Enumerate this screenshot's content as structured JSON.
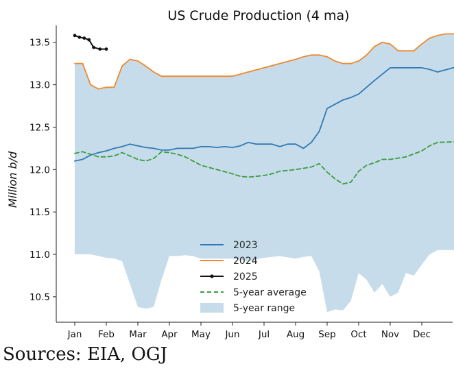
{
  "source_text": "Sources: EIA, OGJ",
  "chart_data": {
    "type": "line",
    "title": "US Crude Production (4 ma)",
    "xlabel": "",
    "ylabel": "Million b/d",
    "x_domain": [
      0,
      12.3
    ],
    "ylim": [
      10.2,
      13.7
    ],
    "x_ticks": [
      {
        "label": "Jan",
        "value": 0
      },
      {
        "label": "Feb",
        "value": 1
      },
      {
        "label": "Mar",
        "value": 2
      },
      {
        "label": "Apr",
        "value": 3
      },
      {
        "label": "May",
        "value": 4
      },
      {
        "label": "Jun",
        "value": 5
      },
      {
        "label": "Jul",
        "value": 6
      },
      {
        "label": "Aug",
        "value": 7
      },
      {
        "label": "Sep",
        "value": 8
      },
      {
        "label": "Oct",
        "value": 9
      },
      {
        "label": "Nov",
        "value": 10
      },
      {
        "label": "Dec",
        "value": 11
      }
    ],
    "y_ticks": [
      {
        "label": "10.5",
        "value": 10.5
      },
      {
        "label": "11.0",
        "value": 11.0
      },
      {
        "label": "11.5",
        "value": 11.5
      },
      {
        "label": "12.0",
        "value": 12.0
      },
      {
        "label": "12.5",
        "value": 12.5
      },
      {
        "label": "13.0",
        "value": 13.0
      },
      {
        "label": "13.5",
        "value": 13.5
      }
    ],
    "range": {
      "name": "5-year range",
      "color": "#c6dcea",
      "x": [
        0,
        0.25,
        0.5,
        0.75,
        1.0,
        1.25,
        1.5,
        1.75,
        2.0,
        2.25,
        2.5,
        2.75,
        3.0,
        3.25,
        3.5,
        3.75,
        4.0,
        4.5,
        5.0,
        5.5,
        6.0,
        6.5,
        7.0,
        7.25,
        7.5,
        7.75,
        8.0,
        8.25,
        8.5,
        8.75,
        9.0,
        9.25,
        9.5,
        9.75,
        10.0,
        10.25,
        10.5,
        10.75,
        11.0,
        11.25,
        11.5,
        11.75,
        12.3
      ],
      "upper": [
        13.25,
        13.25,
        13.0,
        12.95,
        12.97,
        12.97,
        13.22,
        13.3,
        13.28,
        13.22,
        13.15,
        13.1,
        13.1,
        13.1,
        13.1,
        13.1,
        13.1,
        13.1,
        13.1,
        13.15,
        13.2,
        13.25,
        13.3,
        13.33,
        13.35,
        13.35,
        13.33,
        13.28,
        13.25,
        13.25,
        13.28,
        13.35,
        13.45,
        13.5,
        13.48,
        13.4,
        13.4,
        13.4,
        13.48,
        13.55,
        13.58,
        13.6,
        13.6
      ],
      "lower": [
        11.0,
        11.0,
        11.0,
        10.98,
        10.96,
        10.95,
        10.92,
        10.65,
        10.38,
        10.36,
        10.38,
        10.7,
        10.98,
        10.98,
        10.99,
        10.98,
        10.95,
        10.95,
        10.95,
        10.92,
        10.96,
        10.98,
        10.95,
        10.97,
        10.98,
        10.8,
        10.32,
        10.35,
        10.34,
        10.45,
        10.78,
        10.7,
        10.55,
        10.65,
        10.5,
        10.55,
        10.78,
        10.75,
        10.88,
        11.0,
        11.05,
        11.05,
        11.05
      ]
    },
    "series": [
      {
        "name": "2023",
        "color": "#2f78b5",
        "style": "solid",
        "x": [
          0,
          0.25,
          0.5,
          0.75,
          1.0,
          1.25,
          1.5,
          1.75,
          2.0,
          2.25,
          2.5,
          2.75,
          3.0,
          3.25,
          3.5,
          3.75,
          4.0,
          4.25,
          4.5,
          4.75,
          5.0,
          5.25,
          5.5,
          5.75,
          6.0,
          6.25,
          6.5,
          6.75,
          7.0,
          7.25,
          7.5,
          7.75,
          8.0,
          8.5,
          8.75,
          9.0,
          9.5,
          10.0,
          10.5,
          11.0,
          11.25,
          11.5,
          12.3
        ],
        "y": [
          12.1,
          12.12,
          12.17,
          12.2,
          12.22,
          12.25,
          12.27,
          12.3,
          12.28,
          12.26,
          12.25,
          12.23,
          12.23,
          12.25,
          12.25,
          12.25,
          12.27,
          12.27,
          12.26,
          12.27,
          12.26,
          12.28,
          12.32,
          12.3,
          12.3,
          12.3,
          12.27,
          12.3,
          12.3,
          12.25,
          12.32,
          12.45,
          12.72,
          12.82,
          12.85,
          12.89,
          13.05,
          13.2,
          13.2,
          13.2,
          13.18,
          13.15,
          13.23
        ]
      },
      {
        "name": "2024",
        "color": "#f0872a",
        "style": "solid",
        "x": [
          0,
          0.25,
          0.5,
          0.75,
          1.0,
          1.25,
          1.5,
          1.75,
          2.0,
          2.25,
          2.5,
          2.75,
          3.0,
          3.25,
          3.5,
          3.75,
          4.0,
          4.5,
          5.0,
          5.5,
          6.0,
          6.5,
          7.0,
          7.25,
          7.5,
          7.75,
          8.0,
          8.25,
          8.5,
          8.75,
          9.0,
          9.25,
          9.5,
          9.75,
          10.0,
          10.25,
          10.5,
          10.75,
          11.0,
          11.25,
          11.5,
          11.75,
          12.3
        ],
        "y": [
          13.25,
          13.25,
          13.0,
          12.95,
          12.97,
          12.97,
          13.22,
          13.3,
          13.28,
          13.22,
          13.15,
          13.1,
          13.1,
          13.1,
          13.1,
          13.1,
          13.1,
          13.1,
          13.1,
          13.15,
          13.2,
          13.25,
          13.3,
          13.33,
          13.35,
          13.35,
          13.33,
          13.28,
          13.25,
          13.25,
          13.28,
          13.35,
          13.45,
          13.5,
          13.48,
          13.4,
          13.4,
          13.4,
          13.48,
          13.55,
          13.58,
          13.6,
          13.6
        ]
      },
      {
        "name": "2025",
        "color": "#111111",
        "style": "solid",
        "markers": true,
        "x": [
          0,
          0.15,
          0.3,
          0.45,
          0.6,
          0.8,
          1.0
        ],
        "y": [
          13.58,
          13.56,
          13.55,
          13.53,
          13.44,
          13.42,
          13.42
        ]
      },
      {
        "name": "5-year average",
        "color": "#3a9c3a",
        "style": "dashed",
        "x": [
          0,
          0.25,
          0.5,
          0.75,
          1.0,
          1.25,
          1.5,
          1.75,
          2.0,
          2.25,
          2.5,
          2.75,
          3.0,
          3.25,
          3.5,
          3.75,
          4.0,
          4.5,
          5.0,
          5.25,
          5.5,
          6.0,
          6.25,
          6.5,
          7.0,
          7.5,
          7.75,
          8.0,
          8.25,
          8.5,
          8.75,
          9.0,
          9.25,
          9.5,
          9.75,
          10.0,
          10.5,
          11.0,
          11.25,
          11.5,
          12.3
        ],
        "y": [
          12.19,
          12.21,
          12.18,
          12.15,
          12.15,
          12.16,
          12.2,
          12.16,
          12.12,
          12.1,
          12.13,
          12.21,
          12.2,
          12.18,
          12.15,
          12.1,
          12.05,
          12.0,
          11.95,
          11.92,
          11.91,
          11.93,
          11.95,
          11.98,
          12.0,
          12.03,
          12.07,
          11.97,
          11.89,
          11.83,
          11.85,
          11.98,
          12.05,
          12.08,
          12.12,
          12.12,
          12.15,
          12.22,
          12.28,
          12.32,
          12.33
        ]
      }
    ],
    "legend": {
      "placement": "lower-center",
      "entries": [
        "2023",
        "2024",
        "2025",
        "5-year average",
        "5-year range"
      ]
    },
    "grid": false
  }
}
